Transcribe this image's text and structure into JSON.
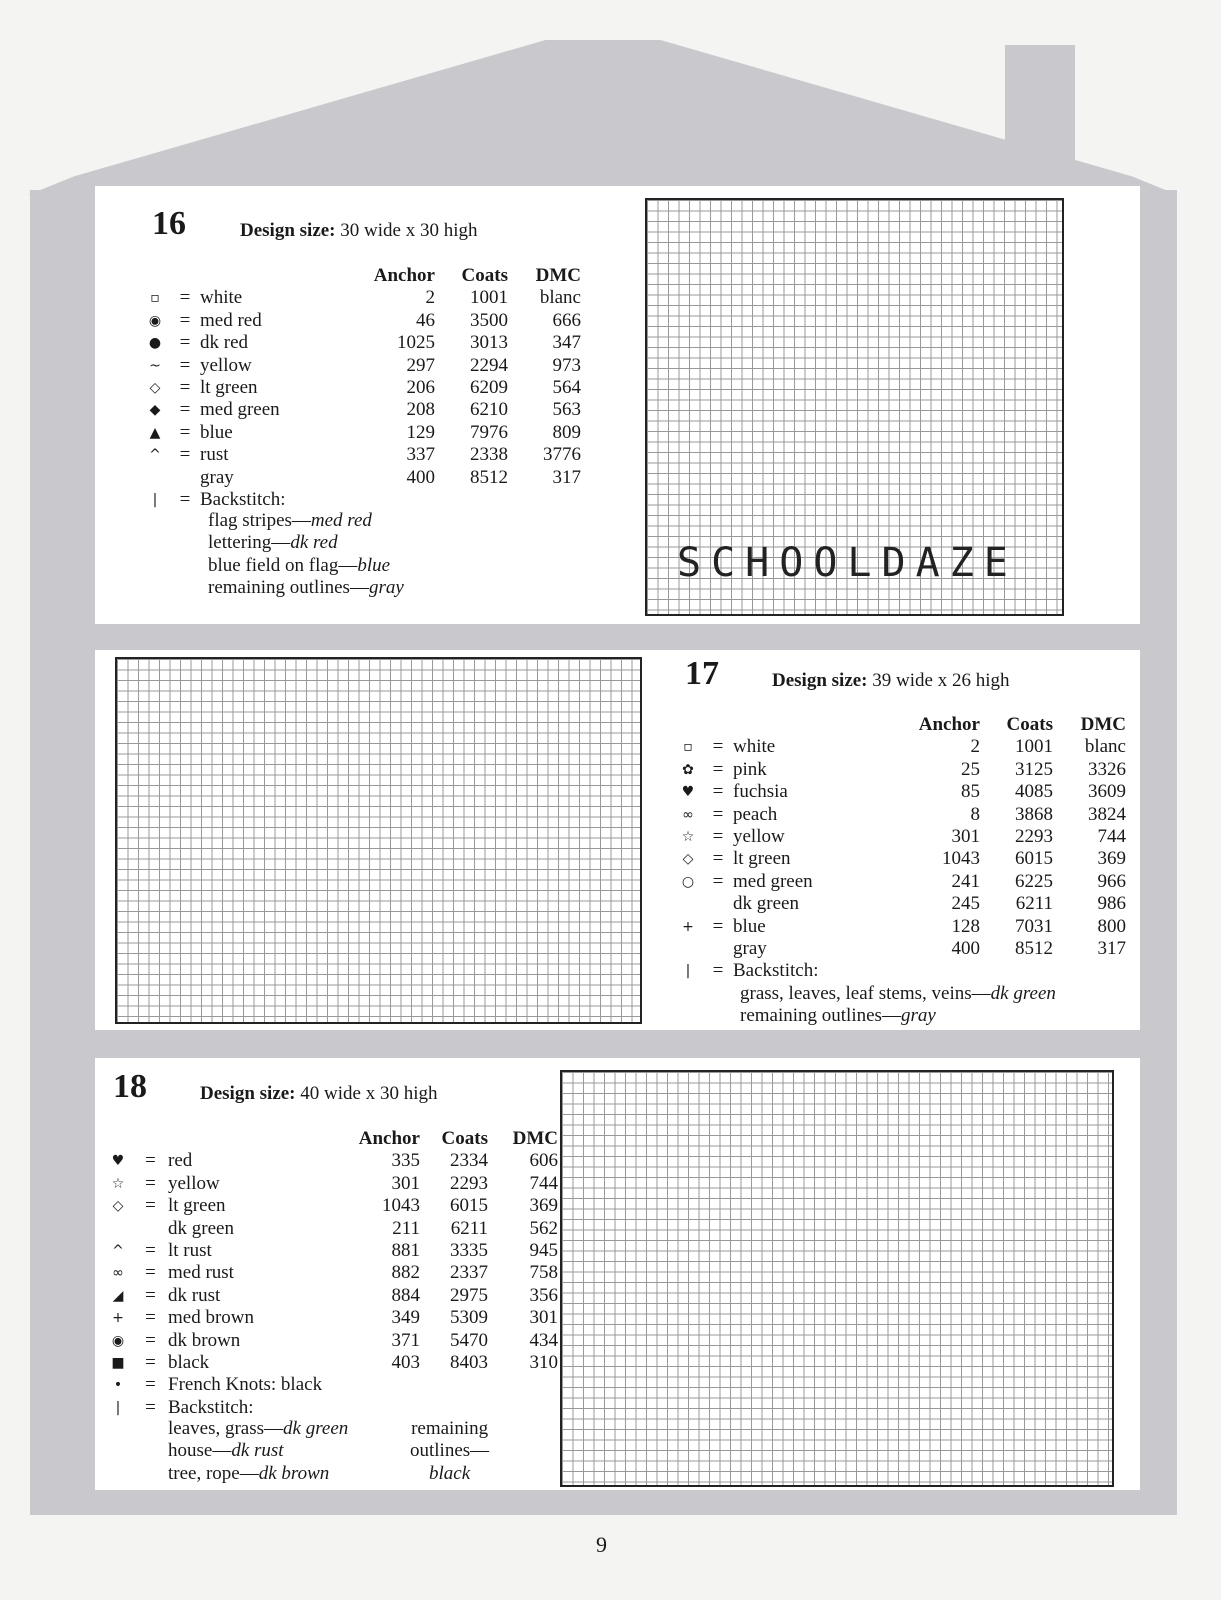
{
  "page_number": "9",
  "legend_headers": [
    "Anchor",
    "Coats",
    "DMC"
  ],
  "designs": [
    {
      "number": "16",
      "design_size_label": "Design size:",
      "design_size": "30 wide x 30 high",
      "rows": [
        {
          "symbol": "▫",
          "name": "white",
          "anchor": "2",
          "coats": "1001",
          "dmc": "blanc"
        },
        {
          "symbol": "◉",
          "name": "med red",
          "anchor": "46",
          "coats": "3500",
          "dmc": "666"
        },
        {
          "symbol": "●",
          "name": "dk red",
          "anchor": "1025",
          "coats": "3013",
          "dmc": "347"
        },
        {
          "symbol": "~",
          "name": "yellow",
          "anchor": "297",
          "coats": "2294",
          "dmc": "973"
        },
        {
          "symbol": "◇",
          "name": "lt green",
          "anchor": "206",
          "coats": "6209",
          "dmc": "564"
        },
        {
          "symbol": "◆",
          "name": "med green",
          "anchor": "208",
          "coats": "6210",
          "dmc": "563"
        },
        {
          "symbol": "▲",
          "name": "blue",
          "anchor": "129",
          "coats": "7976",
          "dmc": "809"
        },
        {
          "symbol": "^",
          "name": "rust",
          "anchor": "337",
          "coats": "2338",
          "dmc": "3776"
        },
        {
          "symbol": "",
          "name": "gray",
          "anchor": "400",
          "coats": "8512",
          "dmc": "317"
        },
        {
          "symbol": "|",
          "name": "Backstitch:",
          "anchor": "",
          "coats": "",
          "dmc": ""
        }
      ],
      "notes": [
        [
          "flag stripes—",
          "med red"
        ],
        [
          "lettering—",
          "dk red"
        ],
        [
          "blue field on flag—",
          "blue"
        ],
        [
          "remaining outlines—",
          "gray"
        ]
      ],
      "chart_lettering": "SCHOOLDAZE"
    },
    {
      "number": "17",
      "design_size_label": "Design size:",
      "design_size": "39 wide x 26 high",
      "rows": [
        {
          "symbol": "▫",
          "name": "white",
          "anchor": "2",
          "coats": "1001",
          "dmc": "blanc"
        },
        {
          "symbol": "✿",
          "name": "pink",
          "anchor": "25",
          "coats": "3125",
          "dmc": "3326"
        },
        {
          "symbol": "♥",
          "name": "fuchsia",
          "anchor": "85",
          "coats": "4085",
          "dmc": "3609"
        },
        {
          "symbol": "∞",
          "name": "peach",
          "anchor": "8",
          "coats": "3868",
          "dmc": "3824"
        },
        {
          "symbol": "☆",
          "name": "yellow",
          "anchor": "301",
          "coats": "2293",
          "dmc": "744"
        },
        {
          "symbol": "◇",
          "name": "lt green",
          "anchor": "1043",
          "coats": "6015",
          "dmc": "369"
        },
        {
          "symbol": "○",
          "name": "med green",
          "anchor": "241",
          "coats": "6225",
          "dmc": "966"
        },
        {
          "symbol": "",
          "name": "dk green",
          "anchor": "245",
          "coats": "6211",
          "dmc": "986"
        },
        {
          "symbol": "+",
          "name": "blue",
          "anchor": "128",
          "coats": "7031",
          "dmc": "800"
        },
        {
          "symbol": "",
          "name": "gray",
          "anchor": "400",
          "coats": "8512",
          "dmc": "317"
        },
        {
          "symbol": "|",
          "name": "Backstitch:",
          "anchor": "",
          "coats": "",
          "dmc": ""
        }
      ],
      "notes": [
        [
          "grass, leaves, leaf stems, veins—",
          "dk green"
        ],
        [
          "remaining outlines—",
          "gray"
        ]
      ]
    },
    {
      "number": "18",
      "design_size_label": "Design size:",
      "design_size": "40 wide x 30 high",
      "rows": [
        {
          "symbol": "♥",
          "name": "red",
          "anchor": "335",
          "coats": "2334",
          "dmc": "606"
        },
        {
          "symbol": "☆",
          "name": "yellow",
          "anchor": "301",
          "coats": "2293",
          "dmc": "744"
        },
        {
          "symbol": "◇",
          "name": "lt green",
          "anchor": "1043",
          "coats": "6015",
          "dmc": "369"
        },
        {
          "symbol": "",
          "name": "dk green",
          "anchor": "211",
          "coats": "6211",
          "dmc": "562"
        },
        {
          "symbol": "^",
          "name": "lt rust",
          "anchor": "881",
          "coats": "3335",
          "dmc": "945"
        },
        {
          "symbol": "∞",
          "name": "med rust",
          "anchor": "882",
          "coats": "2337",
          "dmc": "758"
        },
        {
          "symbol": "◢",
          "name": "dk rust",
          "anchor": "884",
          "coats": "2975",
          "dmc": "356"
        },
        {
          "symbol": "+",
          "name": "med brown",
          "anchor": "349",
          "coats": "5309",
          "dmc": "301"
        },
        {
          "symbol": "◉",
          "name": "dk brown",
          "anchor": "371",
          "coats": "5470",
          "dmc": "434"
        },
        {
          "symbol": "■",
          "name": "black",
          "anchor": "403",
          "coats": "8403",
          "dmc": "310"
        },
        {
          "symbol": "•",
          "name": "French Knots: black",
          "anchor": "",
          "coats": "",
          "dmc": ""
        },
        {
          "symbol": "|",
          "name": "Backstitch:",
          "anchor": "",
          "coats": "",
          "dmc": ""
        }
      ],
      "notes": [
        [
          "leaves, grass—",
          "dk green"
        ],
        [
          "house—",
          "dk rust"
        ],
        [
          "tree, rope—",
          "dk brown"
        ]
      ],
      "notes_right": [
        "remaining",
        "outlines—",
        "black"
      ]
    }
  ]
}
